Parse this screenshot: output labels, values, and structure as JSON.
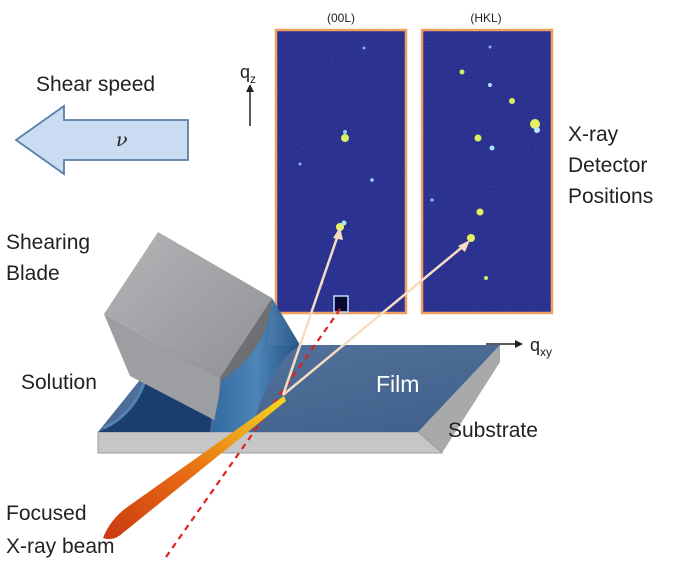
{
  "labels": {
    "shear_speed": "Shear speed",
    "velocity_symbol": "ν",
    "shearing_blade_line1": "Shearing",
    "shearing_blade_line2": "Blade",
    "solution": "Solution",
    "film": "Film",
    "substrate": "Substrate",
    "focused_line1": "Focused",
    "focused_line2": "X-ray beam",
    "detector_line1": "X-ray",
    "detector_line2": "Detector",
    "detector_line3": "Positions",
    "axis_qz_base": "q",
    "axis_qz_sub": "z",
    "axis_qxy_base": "q",
    "axis_qxy_sub": "xy"
  },
  "panels": [
    {
      "title": "(00L)"
    },
    {
      "title": "(HKL)"
    }
  ],
  "colors": {
    "arrow_fill": "#c9dcf2",
    "arrow_stroke": "#5a7fa8",
    "blade_top": "#a9abad",
    "blade_side": "#6d6f72",
    "film_top": "#4d6c96",
    "substrate_edge": "#c4c6c8",
    "solution": "#1e4a7c",
    "detector_bg": "#1a1f78",
    "detector_border": "#f0a060",
    "beam_start": "#d94010",
    "beam_end": "#f3d020",
    "scatter_line": "#f6dcc0",
    "reference_line": "#e02020",
    "spot": "#d8f060"
  }
}
